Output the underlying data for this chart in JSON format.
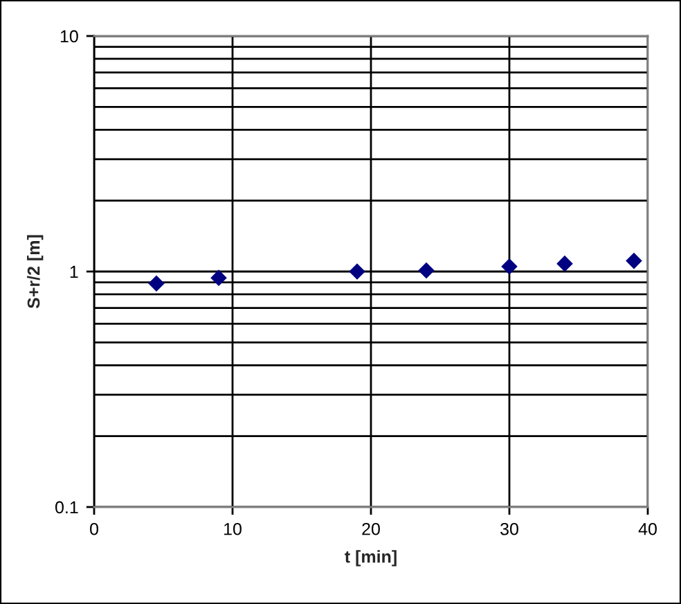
{
  "chart_data": {
    "type": "scatter",
    "xlabel": "t [min]",
    "ylabel": "S+r/2 [m]",
    "x": [
      4.5,
      9,
      19,
      24,
      30,
      34,
      39
    ],
    "series": [
      {
        "color": "#000080",
        "values": [
          0.89,
          0.94,
          1.0,
          1.01,
          1.05,
          1.08,
          1.11
        ]
      }
    ],
    "xlim": [
      0,
      40
    ],
    "xticks": [
      0,
      10,
      20,
      30,
      40
    ],
    "ylim": [
      0.1,
      10
    ],
    "yticks": [
      0.1,
      {
        "value": 0.2,
        "label": null
      },
      {
        "value": 0.3,
        "label": null
      },
      {
        "value": 0.4,
        "label": null
      },
      {
        "value": 0.5,
        "label": null
      },
      {
        "value": 0.6,
        "label": null
      },
      {
        "value": 0.7,
        "label": null
      },
      {
        "value": 0.8,
        "label": null
      },
      {
        "value": 0.9,
        "label": null
      },
      1,
      {
        "value": 2,
        "label": null
      },
      {
        "value": 3,
        "label": null
      },
      {
        "value": 4,
        "label": null
      },
      {
        "value": 5,
        "label": null
      },
      {
        "value": 6,
        "label": null
      },
      {
        "value": 7,
        "label": null
      },
      {
        "value": 8,
        "label": null
      },
      {
        "value": 9,
        "label": null
      },
      10
    ],
    "log": "y",
    "grid": true,
    "marker": "diamond"
  }
}
